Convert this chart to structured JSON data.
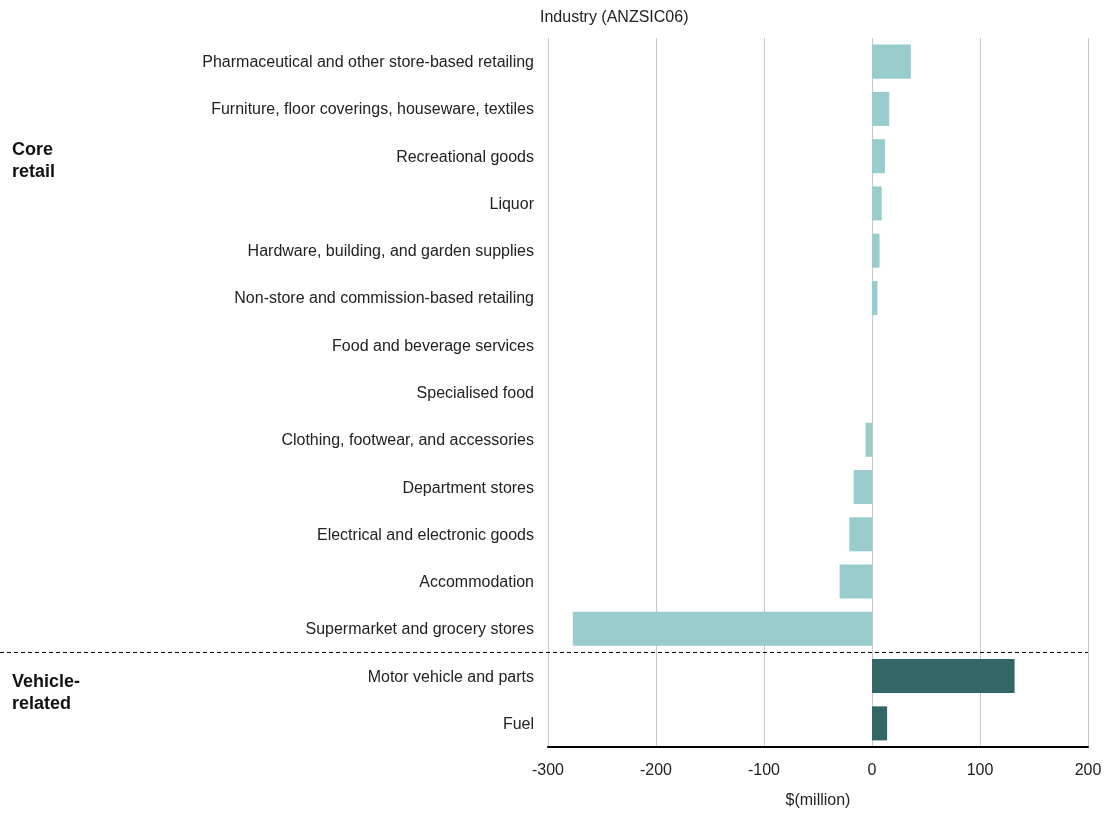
{
  "chart_data": {
    "type": "bar",
    "orientation": "horizontal",
    "ylabel": "Industry (ANZSIC06)",
    "xlabel": "$(million)",
    "categories": [
      "Pharmaceutical and other store-based retailing",
      "Furniture, floor coverings, houseware, textiles",
      "Recreational goods",
      "Liquor",
      "Hardware, building, and garden supplies",
      "Non-store and commission-based retailing",
      "Food and beverage services",
      "Specialised food",
      "Clothing, footwear, and accessories",
      "Department stores",
      "Electrical and electronic goods",
      "Accommodation",
      "Supermarket and grocery stores",
      "Motor vehicle and parts",
      "Fuel"
    ],
    "values": [
      36,
      16,
      12,
      9,
      7,
      5,
      0,
      0,
      -6,
      -17,
      -21,
      -30,
      -277,
      132,
      14
    ],
    "colors": [
      "#99cccc",
      "#99cccc",
      "#99cccc",
      "#99cccc",
      "#99cccc",
      "#99cccc",
      "#99cccc",
      "#99cccc",
      "#99cccc",
      "#99cccc",
      "#99cccc",
      "#99cccc",
      "#99cccc",
      "#336666",
      "#336666"
    ],
    "xlim": [
      -300,
      200
    ],
    "xticks": [
      -300,
      -200,
      -100,
      0,
      100,
      200
    ],
    "grid": "x",
    "ref_lines": [
      {
        "axis": "y",
        "value": "Supermarket and grocery stores",
        "color": "#000000",
        "line_style": "dashed"
      }
    ],
    "annotations": [
      "Core retail",
      "Vehicle-related"
    ]
  }
}
